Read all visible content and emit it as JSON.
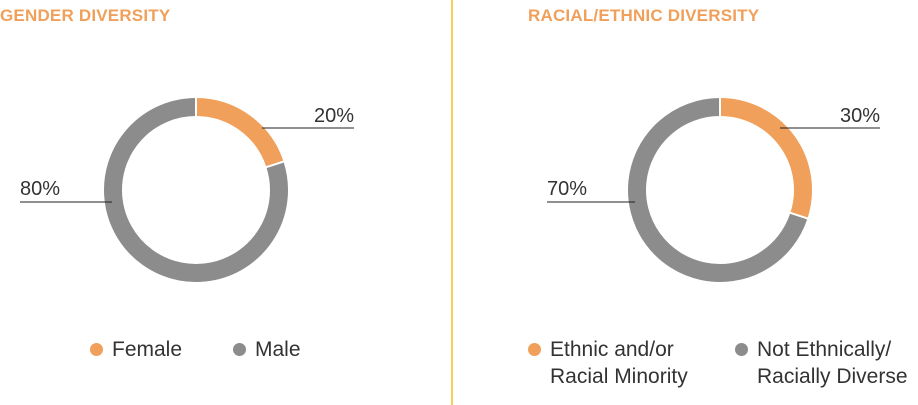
{
  "chart_data": [
    {
      "type": "pie",
      "title": "GENDER DIVERSITY",
      "categories": [
        "Female",
        "Male"
      ],
      "values": [
        20,
        80
      ],
      "value_labels": [
        "20%",
        "80%"
      ],
      "colors": [
        "#f0a05a",
        "#8c8c8c"
      ],
      "donut": true,
      "legend": "bottom"
    },
    {
      "type": "pie",
      "title": "RACIAL/ETHNIC DIVERSITY",
      "categories": [
        "Ethnic and/or\nRacial Minority",
        "Not Ethnically/\nRacially Diverse"
      ],
      "values": [
        30,
        70
      ],
      "value_labels": [
        "30%",
        "70%"
      ],
      "colors": [
        "#f0a05a",
        "#8c8c8c"
      ],
      "donut": true,
      "legend": "bottom"
    }
  ],
  "divider_color": "#f7cf5a"
}
